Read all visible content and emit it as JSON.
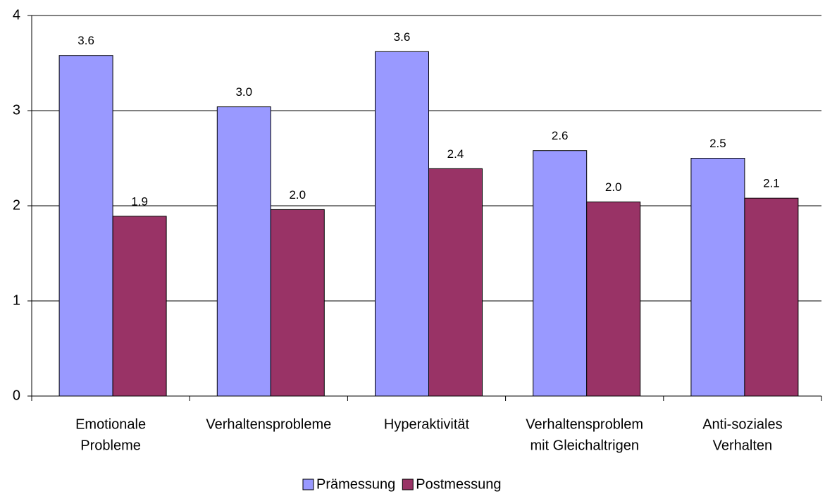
{
  "chart_data": {
    "type": "bar",
    "categories": [
      [
        "Emotionale",
        "Probleme"
      ],
      [
        "Verhaltensprobleme"
      ],
      [
        "Hyperaktivität"
      ],
      [
        "Verhaltensproblem",
        "mit Gleichaltrigen"
      ],
      [
        "Anti-soziales",
        "Verhalten"
      ]
    ],
    "series": [
      {
        "name": "Prämessung",
        "color": "#9999ff",
        "values": [
          3.58,
          3.04,
          3.62,
          2.58,
          2.5
        ],
        "value_labels": [
          "3.6",
          "3.0",
          "3.6",
          "2.6",
          "2.5"
        ]
      },
      {
        "name": "Postmessung",
        "color": "#993366",
        "values": [
          1.89,
          1.96,
          2.39,
          2.04,
          2.08
        ],
        "value_labels": [
          "1.9",
          "2.0",
          "2.4",
          "2.0",
          "2.1"
        ]
      }
    ],
    "ylim": [
      0,
      4
    ],
    "yticks": [
      0,
      1,
      2,
      3,
      4
    ],
    "grid": true,
    "legend": "bottom"
  }
}
